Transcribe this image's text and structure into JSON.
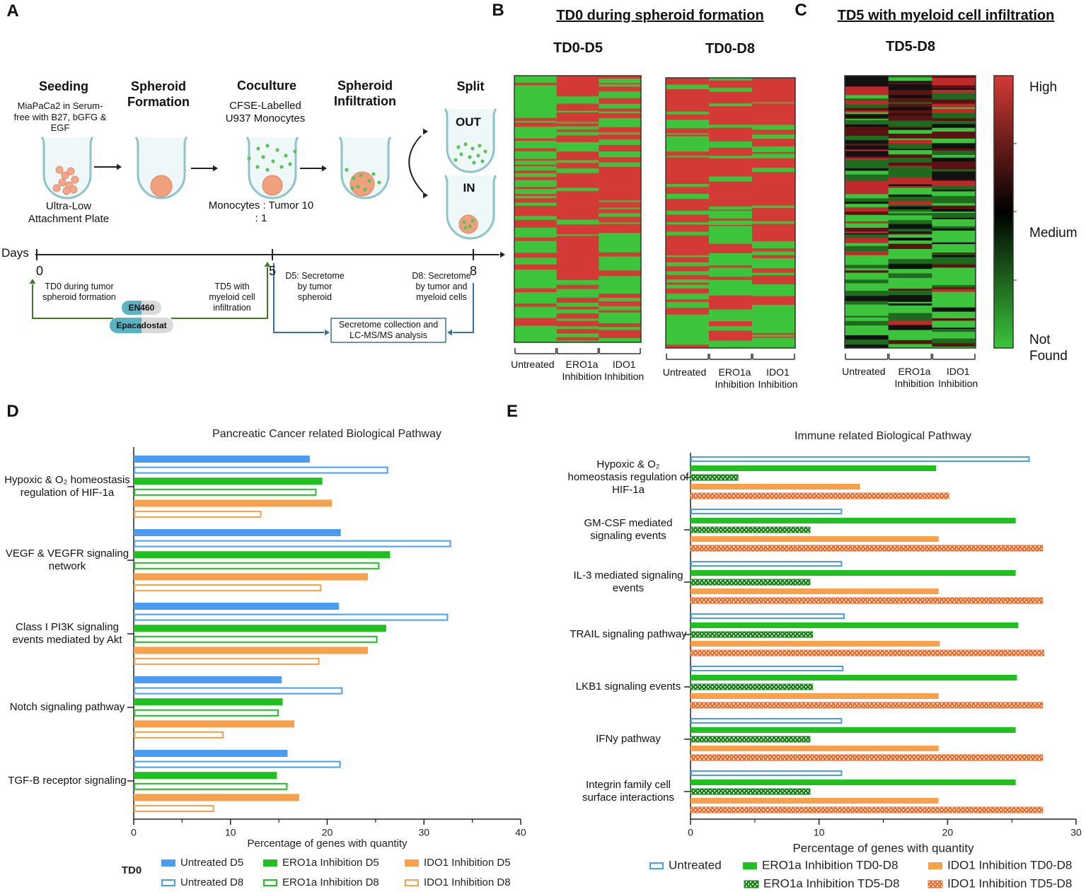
{
  "panel_a": {
    "label": "A",
    "steps": [
      {
        "title": "Seeding",
        "note": "MiaPaCa2 in Serum-free with B27, bGFG & EGF",
        "caption": "Ultra-Low Attachment Plate"
      },
      {
        "title": "Spheroid Formation"
      },
      {
        "title": "Coculture",
        "note": "CFSE-Labelled U937 Monocytes",
        "caption": "Monocytes : Tumor 10 : 1"
      },
      {
        "title": "Spheroid Infiltration"
      },
      {
        "title": "Split",
        "out": "OUT",
        "in": "IN"
      }
    ],
    "timeline": {
      "label": "Days",
      "days": [
        0,
        5,
        8
      ]
    },
    "treatment_td0": "TD0 during tumor spheroid formation",
    "drugs": [
      "EN460",
      "Epacadostat"
    ],
    "treatment_td5": "TD5 with myeloid cell infiltration",
    "d5": "D5: Secretome by tumor spheroid",
    "d8": "D8: Secretome by tumor and myeloid cells",
    "analysis": "Secretome collection and LC-MS/MS analysis"
  },
  "panel_b": {
    "label": "B",
    "title": "TD0 during spheroid formation",
    "heatmaps": [
      "TD0-D5",
      "TD0-D8"
    ],
    "columns": [
      "Untreated",
      "ERO1a Inhibition",
      "IDO1 Inhibition"
    ]
  },
  "panel_c": {
    "label": "C",
    "title": "TD5 with myeloid cell infiltration",
    "heatmaps": [
      "TD5-D8"
    ],
    "columns": [
      "Untreated",
      "ERO1a Inhibition",
      "IDO1 Inhibition"
    ],
    "colorbar": [
      "High",
      "Medium",
      "Not Found"
    ]
  },
  "chart_data": [
    {
      "type": "bar",
      "orientation": "horizontal",
      "label": "D",
      "title": "Pancreatic Cancer related Biological Pathway",
      "xlabel": "Percentage of genes with quantity",
      "legend_title": "TD0",
      "categories": [
        "Hypoxic & O₂ homeostasis regulation of HIF-1a",
        "VEGF & VEGFR signaling network",
        "Class I PI3K signaling events mediated by Akt",
        "Notch signaling pathway",
        "TGF-B receptor signaling"
      ],
      "xlim": [
        0,
        40
      ],
      "xticks": [
        0,
        10,
        20,
        30,
        40
      ],
      "xminorticks": [
        5,
        15,
        25,
        35
      ],
      "series": [
        {
          "name": "Untreated D5",
          "color": "#4a9cf0",
          "style": "solid",
          "values": [
            18.2,
            21.4,
            21.2,
            15.3,
            15.9
          ]
        },
        {
          "name": "Untreated D8",
          "color": "#4a9cf0",
          "style": "outline",
          "values": [
            26.3,
            32.8,
            32.5,
            21.6,
            21.4
          ]
        },
        {
          "name": "ERO1a Inhibition D5",
          "color": "#1fc01f",
          "style": "solid",
          "values": [
            19.5,
            26.5,
            26.1,
            15.4,
            14.8
          ]
        },
        {
          "name": "ERO1a Inhibition D8",
          "color": "#1fc01f",
          "style": "outline",
          "values": [
            18.9,
            25.4,
            25.2,
            15.0,
            15.9
          ]
        },
        {
          "name": "IDO1 Inhibition D5",
          "color": "#f9a14a",
          "style": "solid",
          "values": [
            20.5,
            24.2,
            24.2,
            16.6,
            17.1
          ]
        },
        {
          "name": "IDO1 Inhibition D8",
          "color": "#f9a14a",
          "style": "outline",
          "values": [
            13.2,
            19.4,
            19.2,
            9.3,
            8.3
          ]
        }
      ]
    },
    {
      "type": "bar",
      "orientation": "horizontal",
      "label": "E",
      "title": "Immune related Biological Pathway",
      "xlabel": "Percentage of genes with quantity",
      "categories": [
        "Hypoxic & O₂ homeostasis regulation of HIF-1a",
        "GM-CSF mediated signaling events",
        "IL-3 mediated signaling events",
        "TRAIL signaling pathway",
        "LKB1 signaling events",
        "IFNy pathway",
        "Integrin family cell surface interactions"
      ],
      "xlim": [
        0,
        30
      ],
      "xticks": [
        0,
        10,
        20,
        30
      ],
      "xminorticks": [
        5,
        15,
        25
      ],
      "series": [
        {
          "name": "Untreated",
          "color": "#4a9cf0",
          "style": "outline",
          "values": [
            26.4,
            11.8,
            11.8,
            12.0,
            11.9,
            11.8,
            11.8
          ]
        },
        {
          "name": "ERO1a Inhibition TD0-D8",
          "color": "#1fc01f",
          "style": "solid",
          "values": [
            19.1,
            25.3,
            25.3,
            25.5,
            25.4,
            25.3,
            25.3
          ]
        },
        {
          "name": "ERO1a Inhibition TD5-D8",
          "color": "#1a8a1a",
          "style": "checkered",
          "values": [
            3.7,
            9.3,
            9.3,
            9.5,
            9.5,
            9.3,
            9.3
          ]
        },
        {
          "name": "IDO1 Inhibition TD0-D8",
          "color": "#f9a14a",
          "style": "solid",
          "values": [
            13.2,
            19.3,
            19.3,
            19.4,
            19.3,
            19.3,
            19.3
          ]
        },
        {
          "name": "IDO1 Inhibition TD5-D8",
          "color": "#f07030",
          "style": "checkered",
          "values": [
            20.1,
            27.4,
            27.4,
            27.5,
            27.4,
            27.4,
            27.4
          ]
        }
      ]
    }
  ]
}
